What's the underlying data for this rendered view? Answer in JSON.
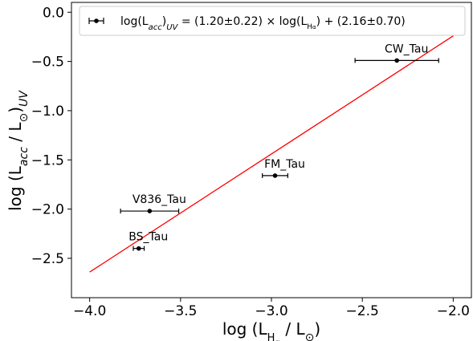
{
  "chart_data": {
    "type": "scatter",
    "title": "",
    "xlabel": "log (L_Hα / L_⊙)",
    "ylabel": "log (L_acc / L_⊙)_UV",
    "xlim": [
      -4.1,
      -1.9
    ],
    "ylim": [
      -2.9,
      0.1
    ],
    "grid": false,
    "x_ticks": [
      -4.0,
      -3.5,
      -3.0,
      -2.5,
      -2.0
    ],
    "x_tick_labels": [
      "−4.0",
      "−3.5",
      "−3.0",
      "−2.5",
      "−2.0"
    ],
    "y_ticks": [
      0.0,
      -0.5,
      -1.0,
      -1.5,
      -2.0,
      -2.5
    ],
    "y_tick_labels": [
      "0.0",
      "−0.5",
      "−1.0",
      "−1.5",
      "−2.0",
      "−2.5"
    ],
    "points": [
      {
        "label": "CW_Tau",
        "x": -2.31,
        "y": -0.49,
        "xerr": 0.23
      },
      {
        "label": "FM_Tau",
        "x": -2.98,
        "y": -1.66,
        "xerr": 0.07
      },
      {
        "label": "V836_Tau",
        "x": -3.67,
        "y": -2.02,
        "xerr": 0.16
      },
      {
        "label": "BS_Tau",
        "x": -3.73,
        "y": -2.4,
        "xerr": 0.03
      }
    ],
    "fit": {
      "slope": 1.2,
      "intercept": 2.16,
      "x_range": [
        -4.0,
        -2.0
      ],
      "color": "#ff0000"
    },
    "legend": {
      "placement": "top",
      "text": "log(L_acc)_UV = (1.20±0.22) × log(L_Hα) + (2.16±0.70)"
    },
    "marker_color": "#000000"
  }
}
